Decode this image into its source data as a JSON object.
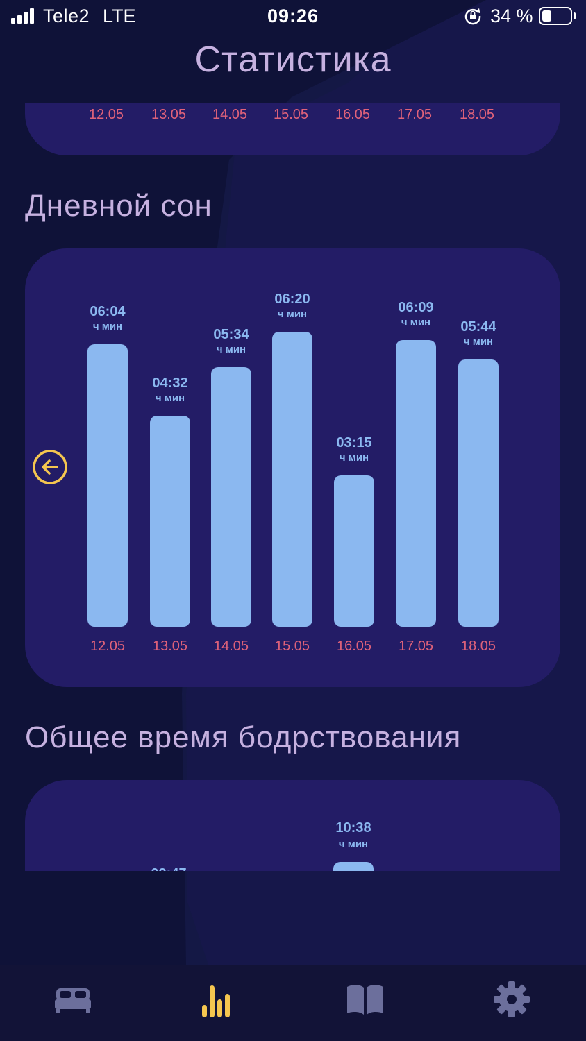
{
  "status_bar": {
    "carrier": "Tele2",
    "network": "LTE",
    "time": "09:26",
    "battery_text": "34 %",
    "battery_level": 0.34
  },
  "title": "Статистика",
  "top_card": {
    "dates": [
      "12.05",
      "13.05",
      "14.05",
      "15.05",
      "16.05",
      "17.05",
      "18.05"
    ]
  },
  "day_sleep": {
    "title": "Дневной сон",
    "unit": "ч мин"
  },
  "chart_data": {
    "type": "bar",
    "categories": [
      "12.05",
      "13.05",
      "14.05",
      "15.05",
      "16.05",
      "17.05",
      "18.05"
    ],
    "values": [
      364,
      272,
      334,
      380,
      195,
      369,
      344
    ],
    "labels": [
      "06:04",
      "04:32",
      "05:34",
      "06:20",
      "03:15",
      "06:09",
      "05:44"
    ],
    "unit": "ч мин"
  },
  "awake": {
    "title": "Общее время бодрствования",
    "visible_value": "10:38",
    "unit": "ч мин"
  },
  "tabs": [
    {
      "icon": "bed-icon",
      "active": false
    },
    {
      "icon": "bar-chart-icon",
      "active": true
    },
    {
      "icon": "book-icon",
      "active": false
    },
    {
      "icon": "gear-icon",
      "active": false
    }
  ],
  "colors": {
    "background": "#141845",
    "card": "#231c66",
    "bar": "#8bb8f0",
    "date": "#e0627a",
    "title": "#c6b1e0",
    "accent": "#f5c64f",
    "tab_inactive": "#6c6f9c"
  }
}
